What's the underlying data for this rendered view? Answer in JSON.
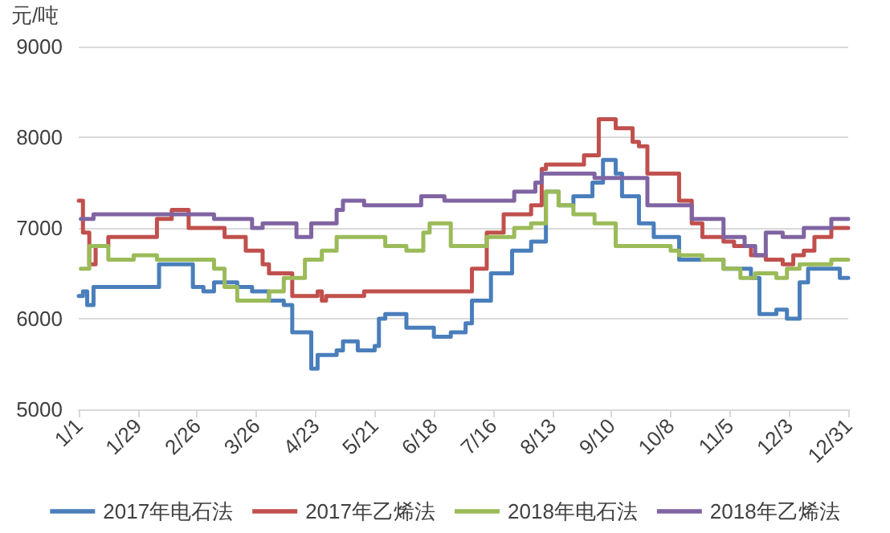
{
  "chart_data": {
    "type": "step",
    "ylabel": "元/吨",
    "xlim": [
      "--01-01",
      "--12-31"
    ],
    "xticks": [
      {
        "value": "--01-01",
        "label": "1/1"
      },
      {
        "value": "--01-29",
        "label": "1/29"
      },
      {
        "value": "--02-26",
        "label": "2/26"
      },
      {
        "value": "--03-26",
        "label": "3/26"
      },
      {
        "value": "--04-23",
        "label": "4/23"
      },
      {
        "value": "--05-21",
        "label": "5/21"
      },
      {
        "value": "--06-18",
        "label": "6/18"
      },
      {
        "value": "--07-16",
        "label": "7/16"
      },
      {
        "value": "--08-13",
        "label": "8/13"
      },
      {
        "value": "--09-10",
        "label": "9/10"
      },
      {
        "value": "--10-08",
        "label": "10/8"
      },
      {
        "value": "--11-05",
        "label": "11/5"
      },
      {
        "value": "--12-03",
        "label": "12/3"
      },
      {
        "value": "--12-31",
        "label": "12/31"
      }
    ],
    "ylim": [
      5000,
      9000
    ],
    "yticks": [
      5000,
      6000,
      7000,
      8000,
      9000
    ],
    "grid": "y",
    "legend": "bottom",
    "marker": "none",
    "line_style": "solid",
    "series": [
      {
        "name": "2017年电石法",
        "color": "#4a7ebb",
        "x": [
          "--01-01",
          "--01-03",
          "--01-05",
          "--01-08",
          "--02-07",
          "--02-08",
          "--02-22",
          "--02-24",
          "--03-01",
          "--03-06",
          "--03-17",
          "--03-24",
          "--04-01",
          "--04-08",
          "--04-12",
          "--04-21",
          "--04-24",
          "--05-03",
          "--05-06",
          "--05-13",
          "--05-21",
          "--05-23",
          "--05-26",
          "--06-05",
          "--06-18",
          "--06-26",
          "--07-03",
          "--07-06",
          "--07-15",
          "--07-25",
          "--08-03",
          "--08-10",
          "--08-16",
          "--08-23",
          "--09-01",
          "--09-06",
          "--09-12",
          "--09-15",
          "--09-23",
          "--09-30",
          "--10-10",
          "--10-12",
          "--11-02",
          "--11-15",
          "--11-19",
          "--11-27",
          "--12-02",
          "--12-08",
          "--12-12",
          "--12-20",
          "--12-27",
          "--12-31"
        ],
        "values": [
          6250,
          6300,
          6150,
          6350,
          6350,
          6600,
          6600,
          6350,
          6300,
          6400,
          6350,
          6300,
          6200,
          6150,
          5850,
          5450,
          5600,
          5650,
          5750,
          5650,
          5700,
          6000,
          6050,
          5900,
          5800,
          5850,
          5950,
          6200,
          6500,
          6750,
          6850,
          7400,
          7250,
          7350,
          7500,
          7750,
          7600,
          7350,
          7050,
          6900,
          6900,
          6650,
          6550,
          6450,
          6050,
          6100,
          6000,
          6400,
          6550,
          6550,
          6450,
          6450
        ]
      },
      {
        "name": "2017年乙烯法",
        "color": "#c0504d",
        "x": [
          "--01-01",
          "--01-03",
          "--01-06",
          "--01-09",
          "--01-15",
          "--02-07",
          "--02-14",
          "--02-22",
          "--03-11",
          "--03-21",
          "--03-29",
          "--04-01",
          "--04-12",
          "--04-24",
          "--04-26",
          "--04-28",
          "--05-16",
          "--07-03",
          "--07-06",
          "--07-13",
          "--07-21",
          "--08-03",
          "--08-08",
          "--08-10",
          "--08-28",
          "--09-04",
          "--09-12",
          "--09-20",
          "--09-23",
          "--09-27",
          "--10-12",
          "--10-18",
          "--10-23",
          "--11-02",
          "--11-07",
          "--11-15",
          "--11-22",
          "--11-30",
          "--12-05",
          "--12-10",
          "--12-15",
          "--12-23",
          "--12-31"
        ],
        "values": [
          7300,
          6950,
          6600,
          6800,
          6900,
          7100,
          7200,
          7000,
          6900,
          6750,
          6600,
          6500,
          6250,
          6300,
          6200,
          6250,
          6300,
          6300,
          6550,
          6950,
          7150,
          7250,
          7650,
          7700,
          7800,
          8200,
          8100,
          7950,
          7900,
          7600,
          7300,
          7050,
          6900,
          6850,
          6800,
          6700,
          6650,
          6600,
          6700,
          6750,
          6900,
          7000,
          7000
        ]
      },
      {
        "name": "2018年电石法",
        "color": "#9bbb59",
        "x": [
          "--01-02",
          "--01-06",
          "--01-09",
          "--01-15",
          "--01-22",
          "--01-27",
          "--02-07",
          "--03-01",
          "--03-06",
          "--03-11",
          "--03-17",
          "--03-26",
          "--04-01",
          "--04-08",
          "--04-18",
          "--04-26",
          "--05-03",
          "--05-21",
          "--05-26",
          "--06-05",
          "--06-13",
          "--06-16",
          "--06-23",
          "--06-26",
          "--07-06",
          "--07-13",
          "--07-26",
          "--08-03",
          "--08-10",
          "--08-16",
          "--08-23",
          "--09-02",
          "--09-12",
          "--09-23",
          "--10-08",
          "--10-12",
          "--10-23",
          "--11-02",
          "--11-10",
          "--11-17",
          "--11-27",
          "--12-02",
          "--12-08",
          "--12-23",
          "--12-31"
        ],
        "values": [
          6550,
          6800,
          6800,
          6650,
          6650,
          6700,
          6650,
          6650,
          6550,
          6350,
          6200,
          6200,
          6300,
          6450,
          6650,
          6750,
          6900,
          6900,
          6800,
          6750,
          6950,
          7050,
          7050,
          6800,
          6800,
          6900,
          7000,
          7050,
          7400,
          7250,
          7150,
          7050,
          6800,
          6800,
          6750,
          6700,
          6650,
          6550,
          6450,
          6500,
          6450,
          6550,
          6600,
          6650,
          6650
        ]
      },
      {
        "name": "2018年乙烯法",
        "color": "#8064a2",
        "x": [
          "--01-02",
          "--01-08",
          "--02-22",
          "--03-06",
          "--03-17",
          "--03-24",
          "--03-29",
          "--04-11",
          "--04-14",
          "--04-20",
          "--04-21",
          "--04-28",
          "--05-03",
          "--05-06",
          "--05-13",
          "--05-16",
          "--06-08",
          "--06-12",
          "--06-23",
          "--07-18",
          "--07-26",
          "--08-05",
          "--08-08",
          "--09-02",
          "--09-23",
          "--09-27",
          "--10-10",
          "--10-18",
          "--11-02",
          "--11-12",
          "--11-17",
          "--11-22",
          "--11-30",
          "--12-10",
          "--12-23",
          "--12-31"
        ],
        "values": [
          7100,
          7150,
          7150,
          7100,
          7100,
          7000,
          7050,
          7050,
          6900,
          6900,
          7050,
          7050,
          7200,
          7300,
          7300,
          7250,
          7250,
          7350,
          7300,
          7300,
          7400,
          7500,
          7600,
          7550,
          7550,
          7250,
          7250,
          7100,
          6900,
          6800,
          6700,
          6950,
          6900,
          7000,
          7100,
          7100
        ]
      }
    ]
  }
}
